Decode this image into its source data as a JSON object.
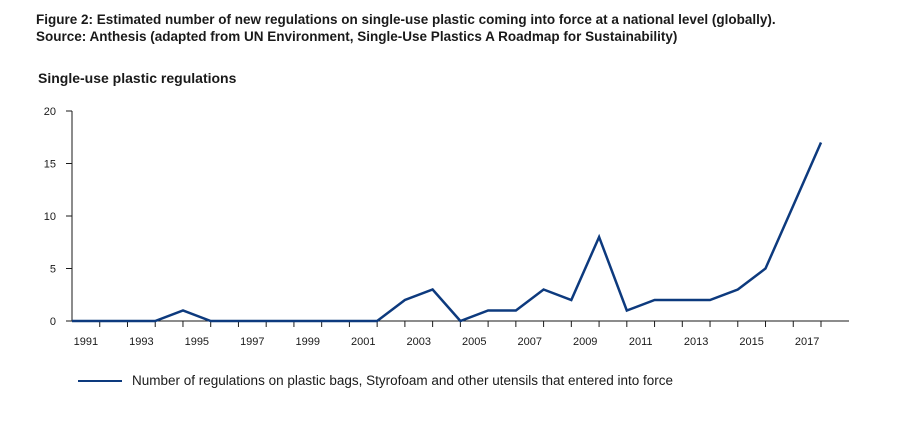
{
  "figure": {
    "title_line1": "Figure 2: Estimated number of new regulations on single-use plastic coming into force at a national level (globally).",
    "title_line2": "Source: Anthesis (adapted from UN Environment, Single-Use Plastics A Roadmap for Sustainability)"
  },
  "chart_data": {
    "type": "line",
    "title": "Single-use plastic regulations",
    "xlabel": "",
    "ylabel": "",
    "x": [
      1990,
      1991,
      1992,
      1993,
      1994,
      1995,
      1996,
      1997,
      1998,
      1999,
      2000,
      2001,
      2002,
      2003,
      2004,
      2005,
      2006,
      2007,
      2008,
      2009,
      2010,
      2011,
      2012,
      2013,
      2014,
      2015,
      2016,
      2017
    ],
    "x_tick_labels": [
      "1991",
      "1993",
      "1995",
      "1997",
      "1999",
      "2001",
      "2003",
      "2005",
      "2007",
      "2009",
      "2011",
      "2013",
      "2015",
      "2017"
    ],
    "y_tick_labels": [
      "0",
      "5",
      "10",
      "15",
      "20"
    ],
    "ylim": [
      0,
      20
    ],
    "grid": false,
    "legend_position": "bottom-left",
    "series": [
      {
        "name": "Number of regulations on plastic bags, Styrofoam and other utensils that entered into force",
        "color": "#0d3a7e",
        "values": [
          0,
          0,
          0,
          0,
          1,
          0,
          0,
          0,
          0,
          0,
          0,
          0,
          2,
          3,
          0,
          1,
          1,
          3,
          2,
          8,
          1,
          2,
          2,
          2,
          3,
          5,
          11,
          17
        ]
      }
    ]
  }
}
